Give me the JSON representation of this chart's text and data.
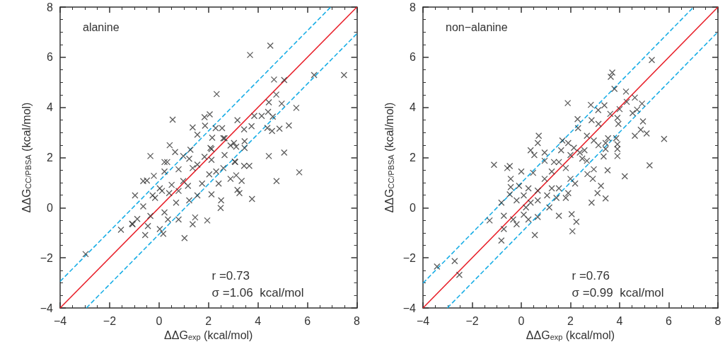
{
  "chart_data": [
    {
      "type": "scatter",
      "xlabel": "ΔΔG$_{exp}$ (kcal/mol)",
      "ylabel": "ΔΔG$_{CC/PBSA}$ (kcal/mol)",
      "annotations": [
        "alanine",
        "r =0.73",
        "σ =1.06  kcal/mol"
      ],
      "xlim": [
        -4,
        8
      ],
      "ylim": [
        -4,
        8
      ],
      "xticks": [
        -4,
        -2,
        0,
        2,
        4,
        6,
        8
      ],
      "yticks": [
        -4,
        -2,
        0,
        2,
        4,
        6,
        8
      ],
      "series": [
        {
          "marker": "cross",
          "color": "#333333",
          "x": [
            4.5,
            3.68,
            6.27,
            7.48,
            4.65,
            5.06,
            2.33,
            4.74,
            4.44,
            4.96,
            5.55,
            3.85,
            4.15,
            4.41,
            4.6,
            1.84,
            2.05,
            0.55,
            3.17,
            1.36,
            1.86,
            2.29,
            2.55,
            3.44,
            3.74,
            4.38,
            4.57,
            4.87,
            5.25,
            1.55,
            2.15,
            2.65,
            3.03,
            3.46,
            3.12,
            3.46,
            2.12,
            0.43,
            0.65,
            0.98,
            1.27,
            4.44,
            5.06,
            -0.35,
            0.22,
            1.84,
            2.65,
            3.06,
            0.33,
            0.22,
            -0.21,
            -0.49,
            -0.97,
            -0.64,
            -0.16,
            0.03,
            0.41,
            0.79,
            1.17,
            0.98,
            0.79,
            1.36,
            1.22,
            1.55,
            2.03,
            1.74,
            1.55,
            1.22,
            0.69,
            0.22,
            0.36,
            0.79,
            0.03,
            0.17,
            1.03,
            1.36,
            1.46,
            1.95,
            -1.54,
            -1.07,
            -0.88,
            -0.56,
            -0.45,
            -0.35,
            2.51,
            2.49,
            2.12,
            2.41,
            2.31,
            2.6,
            2.12,
            2.89,
            3.12,
            3.34,
            3.17,
            3.25,
            3.76,
            3.08,
            3.44,
            3.65,
            4.75,
            5.67,
            2.89,
            2.6,
            2.08,
            0.51,
            0.12,
            -0.26,
            -0.64,
            -2.97,
            -1.09
          ],
          "values": [
            6.46,
            6.09,
            5.29,
            5.29,
            5.11,
            5.09,
            4.53,
            4.51,
            4.2,
            4.15,
            3.98,
            3.66,
            3.66,
            3.82,
            3.63,
            3.61,
            3.72,
            3.51,
            3.49,
            3.2,
            3.27,
            3.17,
            3.17,
            3.12,
            3.25,
            3.18,
            3.06,
            3.15,
            3.28,
            2.91,
            2.79,
            2.77,
            2.58,
            2.65,
            2.43,
            2.38,
            2.34,
            2.49,
            2.22,
            2.06,
            2.31,
            2.06,
            2.2,
            2.06,
            1.82,
            2.03,
            2.1,
            1.84,
            1.82,
            1.44,
            1.27,
            1.08,
            0.49,
            0.05,
            0.39,
            0.77,
            0.58,
            0.67,
            0.87,
            1.06,
            1.53,
            1.58,
            1.95,
            1.72,
            1.33,
            0.96,
            0.49,
            0.29,
            0.2,
            -0.19,
            -0.47,
            -0.47,
            -0.85,
            -1.04,
            -1.21,
            -0.66,
            -0.39,
            -0.51,
            -0.88,
            -0.66,
            -0.45,
            -1.09,
            -0.73,
            -0.33,
            0.29,
            -0.01,
            0.53,
            0.96,
            1.44,
            1.58,
            1.91,
            1.15,
            1.29,
            1.07,
            0.71,
            0.58,
            0.35,
            1.82,
            1.67,
            1.67,
            1.06,
            1.41,
            2.48,
            2.77,
            2.38,
            0.91,
            0.67,
            0.49,
            1.06,
            -1.85,
            -0.64
          ]
        },
        {
          "type": "line",
          "color": "#e8202a",
          "line_style": "solid",
          "x": [
            -4,
            8
          ],
          "values": [
            -4,
            8
          ]
        },
        {
          "type": "line",
          "color": "#1aaee6",
          "line_style": "dashed",
          "x": [
            -4,
            6.94
          ],
          "values": [
            -2.94,
            8
          ]
        },
        {
          "type": "line",
          "color": "#1aaee6",
          "line_style": "dashed",
          "x": [
            -2.94,
            8
          ],
          "values": [
            -4,
            6.94
          ]
        }
      ]
    },
    {
      "type": "scatter",
      "xlabel": "ΔΔG$_{exp}$ (kcal/mol)",
      "ylabel": "ΔΔG$_{CC/PBSA}$ (kcal/mol)",
      "annotations": [
        "non−alanine",
        "r =0.76",
        "σ =0.99  kcal/mol"
      ],
      "xlim": [
        -4,
        8
      ],
      "ylim": [
        -4,
        8
      ],
      "xticks": [
        -4,
        -2,
        0,
        2,
        4,
        6,
        8
      ],
      "yticks": [
        -4,
        -2,
        0,
        2,
        4,
        6,
        8
      ],
      "series": [
        {
          "marker": "cross",
          "color": "#333333",
          "x": [
            5.31,
            3.7,
            3.64,
            3.79,
            4.26,
            4.62,
            4.29,
            4.91,
            1.89,
            2.83,
            3.38,
            3.13,
            4.0,
            4.71,
            4.53,
            3.62,
            3.91,
            2.29,
            2.86,
            4.95,
            2.31,
            3.95,
            3.14,
            4.86,
            5.1,
            4.62,
            5.81,
            3.53,
            3.86,
            2.67,
            2.95,
            3.43,
            3.91,
            3.91,
            3.14,
            3.43,
            3.91,
            3.35,
            0.71,
            0.67,
            0.38,
            0.53,
            0.95,
            1.67,
            1.91,
            1.62,
            2.14,
            2.38,
            2.57,
            2.0,
            2.48,
            2.67,
            0.95,
            1.33,
            5.22,
            -1.11,
            -0.47,
            -0.57,
            4.21,
            3.24,
            3.1,
            3.43,
            2.86,
            3.51,
            2.95,
            2.69,
            2.91,
            2.19,
            2.0,
            1.91,
            1.53,
            1.43,
            1.14,
            1.53,
            2.05,
            2.24,
            2.08,
            0.55,
            0.67,
            0.29,
            -0.19,
            -0.33,
            -0.71,
            -0.81,
            -1.29,
            -0.71,
            -0.81,
            -0.47,
            -0.43,
            -0.43,
            0,
            0.48,
            0.95,
            0.67,
            0.1,
            -0.19,
            0.38,
            0.67,
            1.05,
            0.29,
            -0.09,
            0.19,
            0.1,
            1.53,
            1.24,
            1.81,
            1.24,
            1.81,
            -3.43,
            -2.71,
            -2.52
          ],
          "values": [
            5.89,
            5.39,
            5.22,
            4.74,
            4.63,
            4.39,
            4.22,
            4.15,
            4.17,
            4.1,
            4.08,
            3.89,
            3.93,
            3.91,
            3.77,
            3.74,
            3.58,
            3.53,
            3.49,
            3.44,
            3.17,
            3.34,
            3.34,
            3.11,
            2.96,
            2.87,
            2.74,
            2.77,
            2.77,
            2.87,
            2.68,
            2.58,
            2.53,
            2.34,
            2.49,
            2.34,
            2.06,
            2.04,
            2.87,
            2.58,
            2.29,
            2.1,
            2.2,
            2.68,
            2.58,
            2.29,
            2.39,
            2.2,
            2.29,
            2.1,
            1.96,
            1.87,
            1.87,
            1.82,
            1.69,
            1.71,
            1.66,
            1.58,
            1.25,
            0.87,
            0.58,
            0.37,
            0.2,
            1.49,
            1.53,
            1.34,
            1.15,
            0.96,
            1.15,
            0.58,
            0.77,
            0.39,
            0.01,
            -0.32,
            -0.26,
            -0.56,
            -0.94,
            -1.09,
            -0.37,
            -0.47,
            -0.66,
            -0.47,
            -0.85,
            -1.31,
            -0.51,
            -0.32,
            0.2,
            0.53,
            0.82,
            1.15,
            1.44,
            1.39,
            1.15,
            0.68,
            0.49,
            0.29,
            0.2,
            0.29,
            0.49,
            0.77,
            0.87,
            0.01,
            -0.28,
            1.82,
            1.44,
            1.58,
            0.77,
            0.39,
            -2.35,
            -2.13,
            -2.68
          ]
        },
        {
          "type": "line",
          "color": "#e8202a",
          "line_style": "solid",
          "x": [
            -4,
            8
          ],
          "values": [
            -4,
            8
          ]
        },
        {
          "type": "line",
          "color": "#1aaee6",
          "line_style": "dashed",
          "x": [
            -4,
            7.01
          ],
          "values": [
            -3.01,
            8
          ]
        },
        {
          "type": "line",
          "color": "#1aaee6",
          "line_style": "dashed",
          "x": [
            -3.01,
            8
          ],
          "values": [
            -4,
            7.01
          ]
        }
      ]
    }
  ]
}
